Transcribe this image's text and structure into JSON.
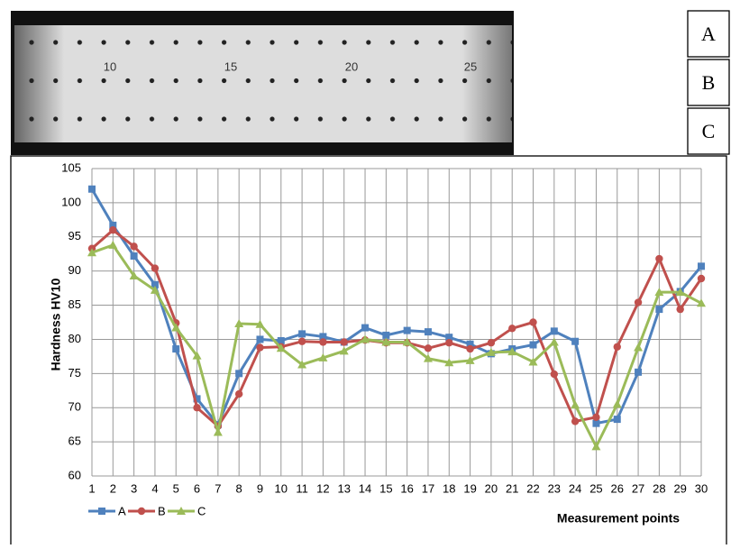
{
  "photo": {
    "scale_labels": [
      "10",
      "15",
      "20",
      "25"
    ],
    "row_labels": [
      "A",
      "B",
      "C"
    ]
  },
  "chart_data": {
    "type": "line",
    "y_label": "Hardness HV10",
    "x_label": "Measurement points",
    "x": [
      1,
      2,
      3,
      4,
      5,
      6,
      7,
      8,
      9,
      10,
      11,
      12,
      13,
      14,
      15,
      16,
      17,
      18,
      19,
      20,
      21,
      22,
      23,
      24,
      25,
      26,
      27,
      28,
      29,
      30
    ],
    "xlim": [
      1,
      30
    ],
    "xticks": [
      1,
      2,
      3,
      4,
      5,
      6,
      7,
      8,
      9,
      10,
      11,
      12,
      13,
      14,
      15,
      16,
      17,
      18,
      19,
      20,
      21,
      22,
      23,
      24,
      25,
      26,
      27,
      28,
      29,
      30
    ],
    "ylim": [
      60,
      105
    ],
    "yticks": [
      60,
      65,
      70,
      75,
      80,
      85,
      90,
      95,
      100,
      105
    ],
    "grid": true,
    "legend": "bottom-left",
    "series": [
      {
        "name": "A",
        "color": "#4f81bd",
        "marker": "square",
        "values": [
          102,
          96.7,
          92.2,
          88,
          78.6,
          71.3,
          67.5,
          75,
          80,
          79.8,
          80.8,
          80.4,
          79.6,
          81.7,
          80.6,
          81.3,
          81.1,
          80.3,
          79.3,
          77.9,
          78.6,
          79.2,
          81.2,
          79.7,
          67.7,
          68.3,
          75.2,
          84.4,
          87,
          90.7
        ]
      },
      {
        "name": "B",
        "color": "#c0504d",
        "marker": "circle",
        "values": [
          93.3,
          96,
          93.6,
          90.4,
          82.4,
          70,
          67.3,
          72,
          78.8,
          78.9,
          79.7,
          79.6,
          79.6,
          79.9,
          79.5,
          79.5,
          78.7,
          79.5,
          78.6,
          79.5,
          81.6,
          82.5,
          74.9,
          68,
          68.6,
          78.9,
          85.4,
          91.8,
          84.4,
          88.9
        ]
      },
      {
        "name": "C",
        "color": "#9bbb59",
        "marker": "triangle",
        "values": [
          92.7,
          93.8,
          89.3,
          87.2,
          81.7,
          77.6,
          66.4,
          82.3,
          82.2,
          78.7,
          76.3,
          77.3,
          78.3,
          80,
          79.6,
          79.6,
          77.2,
          76.6,
          76.9,
          78.1,
          78.2,
          76.7,
          79.6,
          70.4,
          64.3,
          70.5,
          78.8,
          86.9,
          86.9,
          85.3
        ]
      }
    ]
  }
}
